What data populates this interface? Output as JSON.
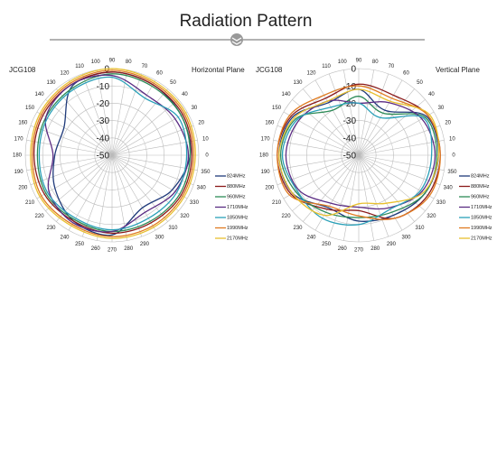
{
  "header": {
    "title": "Radiation Pattern"
  },
  "chart_data": [
    {
      "type": "polar",
      "title": "JCG108",
      "subtitle": "Horizontal Plane",
      "theta": [
        0,
        30,
        60,
        90,
        120,
        150,
        180,
        210,
        240,
        270,
        300,
        330
      ],
      "rlim": [
        -50,
        0
      ],
      "rticks": [
        0,
        -10,
        -20,
        -30,
        -40,
        -50
      ],
      "thetaticks": [
        0,
        10,
        20,
        30,
        40,
        50,
        60,
        70,
        80,
        90,
        100,
        110,
        120,
        130,
        140,
        150,
        160,
        170,
        180,
        190,
        200,
        210,
        220,
        230,
        240,
        250,
        260,
        270,
        280,
        290,
        300,
        310,
        320,
        330,
        340,
        350
      ],
      "grid": true,
      "series": [
        {
          "name": "824MHz",
          "color": "#1f3a7a",
          "values": [
            -5,
            -4,
            -3,
            -2,
            -4,
            -18,
            -17,
            -12,
            -6,
            -4,
            -15,
            -10
          ]
        },
        {
          "name": "880MHz",
          "color": "#8b1a1a",
          "values": [
            -4,
            -3,
            -3,
            -2,
            -3,
            -4,
            -5,
            -5,
            -6,
            -5,
            -5,
            -4
          ]
        },
        {
          "name": "960MHz",
          "color": "#2e8b57",
          "values": [
            -5,
            -4,
            -4,
            -3,
            -5,
            -6,
            -7,
            -6,
            -7,
            -6,
            -6,
            -5
          ]
        },
        {
          "name": "1710MHz",
          "color": "#5b2c83",
          "values": [
            -6,
            -8,
            -10,
            -4,
            -3,
            -6,
            -16,
            -8,
            -5,
            -6,
            -12,
            -8
          ]
        },
        {
          "name": "1850MHz",
          "color": "#2aa0b8",
          "values": [
            -7,
            -6,
            -12,
            -5,
            -6,
            -7,
            -8,
            -7,
            -8,
            -7,
            -8,
            -7
          ]
        },
        {
          "name": "1990MHz",
          "color": "#e07b20",
          "values": [
            -3,
            -2,
            -2,
            -1,
            -2,
            -3,
            -4,
            -3,
            -4,
            -3,
            -3,
            -3
          ]
        },
        {
          "name": "2170MHz",
          "color": "#e8c030",
          "values": [
            -2,
            -1,
            -1,
            0,
            -1,
            -2,
            -3,
            -2,
            -3,
            -2,
            -2,
            -2
          ]
        }
      ]
    },
    {
      "type": "polar",
      "title": "JCG108",
      "subtitle": "Vertical Plane",
      "theta": [
        0,
        30,
        60,
        90,
        120,
        150,
        180,
        210,
        240,
        270,
        300,
        330
      ],
      "rlim": [
        -50,
        0
      ],
      "rticks": [
        0,
        -10,
        -20,
        -30,
        -40,
        -50
      ],
      "thetaticks": [
        0,
        10,
        20,
        30,
        40,
        50,
        60,
        70,
        80,
        90,
        100,
        110,
        120,
        130,
        140,
        150,
        160,
        170,
        180,
        190,
        200,
        210,
        220,
        230,
        240,
        250,
        260,
        270,
        280,
        290,
        300,
        310,
        320,
        330,
        340,
        350
      ],
      "grid": true,
      "series": [
        {
          "name": "824MHz",
          "color": "#1f3a7a",
          "values": [
            -4,
            -5,
            -20,
            -12,
            -15,
            -6,
            -4,
            -6,
            -15,
            -12,
            -10,
            -6
          ]
        },
        {
          "name": "880MHz",
          "color": "#8b1a1a",
          "values": [
            -3,
            -4,
            -10,
            -9,
            -12,
            -5,
            -3,
            -5,
            -14,
            -18,
            -8,
            -4
          ]
        },
        {
          "name": "960MHz",
          "color": "#2e8b57",
          "values": [
            -5,
            -6,
            -22,
            -16,
            -20,
            -8,
            -5,
            -8,
            -12,
            -14,
            -12,
            -6
          ]
        },
        {
          "name": "1710MHz",
          "color": "#5b2c83",
          "values": [
            -6,
            -8,
            -15,
            -20,
            -14,
            -10,
            -8,
            -10,
            -18,
            -20,
            -15,
            -8
          ]
        },
        {
          "name": "1850MHz",
          "color": "#2aa0b8",
          "values": [
            -8,
            -7,
            -25,
            -20,
            -18,
            -9,
            -6,
            -9,
            -8,
            -10,
            -14,
            -9
          ]
        },
        {
          "name": "1990MHz",
          "color": "#e07b20",
          "values": [
            -3,
            -4,
            -12,
            -10,
            -10,
            -4,
            -3,
            -4,
            -16,
            -15,
            -8,
            -3
          ]
        },
        {
          "name": "2170MHz",
          "color": "#e8c030",
          "values": [
            -4,
            -3,
            -14,
            -12,
            -14,
            -7,
            -4,
            -6,
            -10,
            -22,
            -18,
            -7
          ]
        }
      ]
    }
  ]
}
